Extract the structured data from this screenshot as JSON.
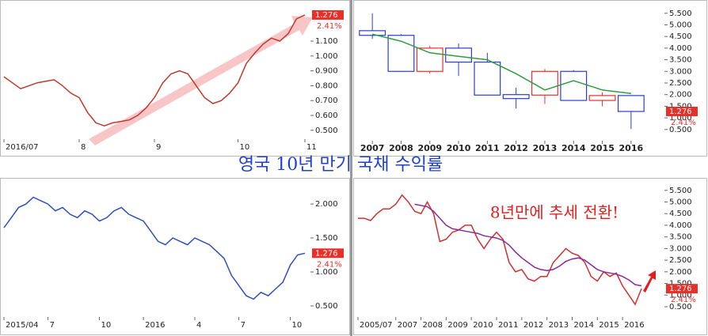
{
  "title": "영국 10년 만기 국채 수익률",
  "chart_data": [
    {
      "type": "line",
      "categories": [
        "2016/07",
        null,
        null,
        null,
        null,
        null,
        null,
        null,
        null,
        "8",
        null,
        null,
        null,
        null,
        null,
        null,
        null,
        null,
        "9",
        null,
        null,
        null,
        null,
        null,
        null,
        null,
        null,
        null,
        "10",
        null,
        null,
        null,
        null,
        null,
        null,
        null,
        "11"
      ],
      "series": [
        {
          "color": "#c0392b",
          "values": [
            0.86,
            0.82,
            0.78,
            0.8,
            0.82,
            0.83,
            0.84,
            0.8,
            0.75,
            0.72,
            0.62,
            0.55,
            0.53,
            0.55,
            0.56,
            0.57,
            0.6,
            0.65,
            0.72,
            0.82,
            0.88,
            0.9,
            0.88,
            0.8,
            0.72,
            0.68,
            0.7,
            0.75,
            0.82,
            0.95,
            1.02,
            1.08,
            1.12,
            1.1,
            1.15,
            1.25,
            1.276
          ]
        }
      ],
      "ylim": [
        0.43,
        1.35
      ],
      "yticks": [
        {
          "value": 1.1,
          "label": "1.100"
        },
        {
          "value": 1.0,
          "label": "1.000"
        },
        {
          "value": 0.9,
          "label": "0.900"
        },
        {
          "value": 0.8,
          "label": "0.800"
        },
        {
          "value": 0.7,
          "label": "0.700"
        },
        {
          "value": 0.6,
          "label": "0.600"
        },
        {
          "value": 0.5,
          "label": "0.500"
        }
      ],
      "last_label": "1.276",
      "change_label": "2.41%"
    },
    {
      "type": "candlestick",
      "categories": [
        "2007",
        "2008",
        "2009",
        "2010",
        "2011",
        "2012",
        "2013",
        "2014",
        "2015",
        "2016"
      ],
      "open": [
        4.75,
        4.55,
        3.0,
        4.0,
        3.4,
        2.0,
        1.98,
        3.0,
        1.75,
        1.96
      ],
      "high": [
        5.5,
        4.6,
        4.1,
        4.2,
        3.8,
        2.3,
        3.1,
        3.05,
        2.1,
        1.96
      ],
      "low": [
        4.4,
        3.0,
        2.9,
        2.8,
        1.98,
        1.4,
        1.6,
        1.75,
        1.5,
        0.52
      ],
      "close": [
        4.55,
        3.0,
        4.0,
        3.4,
        1.98,
        1.83,
        3.0,
        1.75,
        1.96,
        1.276
      ],
      "up_color": "#e8302a",
      "down_color": "#2a3cd8",
      "series": [
        {
          "color": "#2e9e3e",
          "values": [
            4.6,
            4.3,
            3.8,
            3.65,
            3.5,
            2.9,
            2.2,
            2.6,
            2.2,
            2.05
          ]
        }
      ],
      "ylim": [
        0,
        5.9
      ],
      "yticks": [
        {
          "value": 5.5,
          "label": "5.500"
        },
        {
          "value": 5.0,
          "label": "5.000"
        },
        {
          "value": 4.5,
          "label": "4.500"
        },
        {
          "value": 4.0,
          "label": "4.000"
        },
        {
          "value": 3.5,
          "label": "3.500"
        },
        {
          "value": 3.0,
          "label": "3.000"
        },
        {
          "value": 2.5,
          "label": "2.500"
        },
        {
          "value": 2.0,
          "label": "2.000"
        },
        {
          "value": 1.5,
          "label": "1.500"
        },
        {
          "value": 1.0,
          "label": "1.000"
        },
        {
          "value": 0.5,
          "label": "0.500"
        }
      ],
      "last_label": "1.276",
      "change_label": "2.41%"
    },
    {
      "type": "line",
      "categories": [
        "2015/04",
        null,
        null,
        null,
        null,
        null,
        "7",
        null,
        null,
        null,
        null,
        null,
        null,
        "10",
        null,
        null,
        null,
        null,
        null,
        "2016",
        null,
        null,
        null,
        null,
        null,
        null,
        "4",
        null,
        null,
        null,
        null,
        null,
        "7",
        null,
        null,
        null,
        null,
        null,
        null,
        "10",
        null,
        null
      ],
      "series": [
        {
          "color": "#2f4fbf",
          "values": [
            1.65,
            1.8,
            1.95,
            2.0,
            2.1,
            2.05,
            2.0,
            1.9,
            1.95,
            1.85,
            1.8,
            1.9,
            1.85,
            1.75,
            1.8,
            1.9,
            1.95,
            1.85,
            1.8,
            1.75,
            1.6,
            1.45,
            1.4,
            1.5,
            1.45,
            1.4,
            1.5,
            1.45,
            1.4,
            1.3,
            1.2,
            0.95,
            0.8,
            0.65,
            0.6,
            0.7,
            0.65,
            0.75,
            0.85,
            1.1,
            1.25,
            1.276
          ]
        }
      ],
      "ylim": [
        0.29,
        2.35
      ],
      "yticks": [
        {
          "value": 2.0,
          "label": "2.000"
        },
        {
          "value": 1.5,
          "label": "1.500"
        },
        {
          "value": 1.0,
          "label": "1.000"
        },
        {
          "value": 0.5,
          "label": "0.500"
        }
      ],
      "last_label": "1.276",
      "change_label": "2.41%"
    },
    {
      "type": "line",
      "categories": [
        "2005/07",
        null,
        null,
        null,
        null,
        null,
        "2007",
        null,
        null,
        null,
        "2008",
        null,
        null,
        null,
        "2009",
        null,
        null,
        null,
        "2010",
        null,
        null,
        null,
        "2011",
        null,
        null,
        null,
        "2012",
        null,
        null,
        null,
        "2013",
        null,
        null,
        null,
        "2014",
        null,
        null,
        null,
        "2015",
        null,
        null,
        null,
        "2016",
        null,
        null,
        null
      ],
      "series": [
        {
          "color": "#d03030",
          "values": [
            4.3,
            4.3,
            4.2,
            4.5,
            4.7,
            4.7,
            4.9,
            5.3,
            5.0,
            4.6,
            4.5,
            5.0,
            4.5,
            3.3,
            3.4,
            3.7,
            3.8,
            4.0,
            4.0,
            3.4,
            3.0,
            3.4,
            3.7,
            3.4,
            2.4,
            2.0,
            2.1,
            1.7,
            1.6,
            1.8,
            1.8,
            2.4,
            2.7,
            3.0,
            2.8,
            2.7,
            2.4,
            1.8,
            1.6,
            2.0,
            1.8,
            1.95,
            1.4,
            1.0,
            0.6,
            1.276
          ]
        },
        {
          "color": "#8a2a9a",
          "values": [
            null,
            null,
            null,
            null,
            null,
            null,
            null,
            null,
            null,
            4.9,
            4.85,
            4.8,
            4.6,
            4.3,
            4.0,
            3.85,
            3.8,
            3.75,
            3.7,
            3.65,
            3.55,
            3.5,
            3.45,
            3.35,
            3.15,
            2.85,
            2.6,
            2.4,
            2.2,
            2.1,
            2.05,
            2.1,
            2.25,
            2.45,
            2.55,
            2.6,
            2.5,
            2.3,
            2.1,
            2.0,
            1.95,
            1.9,
            1.8,
            1.65,
            1.45,
            1.4
          ]
        }
      ],
      "ylim": [
        0,
        5.9
      ],
      "yticks": [
        {
          "value": 5.5,
          "label": "5.500"
        },
        {
          "value": 5.0,
          "label": "5.000"
        },
        {
          "value": 4.5,
          "label": "4.500"
        },
        {
          "value": 4.0,
          "label": "4.000"
        },
        {
          "value": 3.5,
          "label": "3.500"
        },
        {
          "value": 3.0,
          "label": "3.000"
        },
        {
          "value": 2.5,
          "label": "2.500"
        },
        {
          "value": 2.0,
          "label": "2.000"
        },
        {
          "value": 1.5,
          "label": "1.500"
        },
        {
          "value": 1.0,
          "label": "1.000"
        },
        {
          "value": 0.5,
          "label": "0.500"
        }
      ],
      "annotation": "8년만에 추세 전환!",
      "last_label": "1.276",
      "change_label": "2.41%"
    }
  ]
}
